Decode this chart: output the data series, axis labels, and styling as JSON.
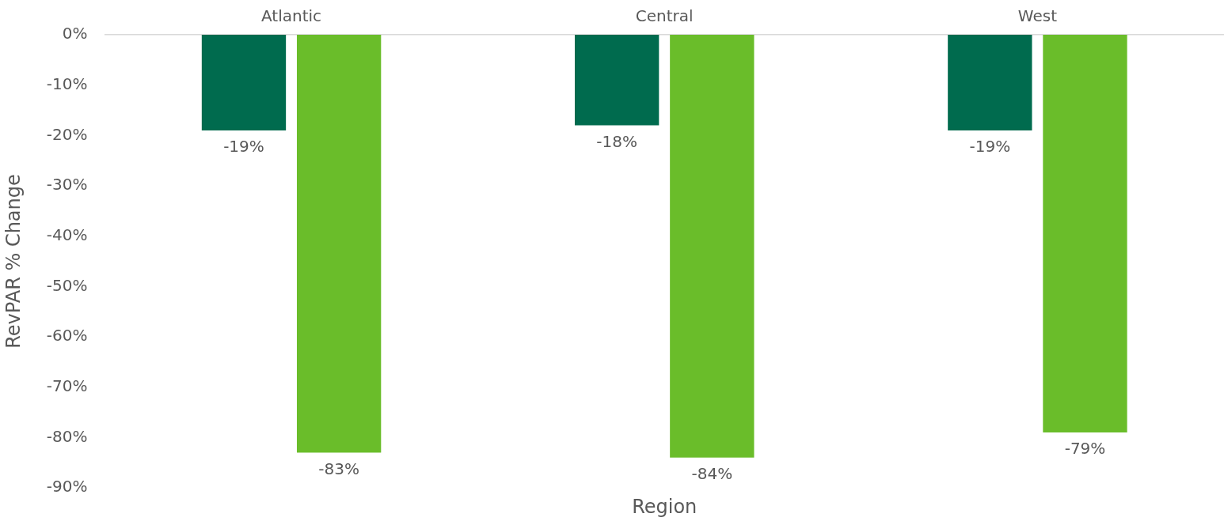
{
  "chart_data": {
    "type": "bar",
    "xlabel": "Region",
    "ylabel": "RevPAR % Change",
    "categories": [
      "Atlantic",
      "Central",
      "West"
    ],
    "series": [
      {
        "color": "#006b4e",
        "values": [
          -19,
          -18,
          -19
        ],
        "value_labels": [
          "-19%",
          "-18%",
          "-19%"
        ]
      },
      {
        "color": "#6abd2a",
        "values": [
          -83,
          -84,
          -79
        ],
        "value_labels": [
          "-83%",
          "-84%",
          "-79%"
        ]
      }
    ],
    "ylim": [
      -90,
      0
    ],
    "yticks": [
      {
        "value": 0,
        "label": "0%"
      },
      {
        "value": -10,
        "label": "-10%"
      },
      {
        "value": -20,
        "label": "-20%"
      },
      {
        "value": -30,
        "label": "-30%"
      },
      {
        "value": -40,
        "label": "-40%"
      },
      {
        "value": -50,
        "label": "-50%"
      },
      {
        "value": -60,
        "label": "-60%"
      },
      {
        "value": -70,
        "label": "-70%"
      },
      {
        "value": -80,
        "label": "-80%"
      },
      {
        "value": -90,
        "label": "-90%"
      }
    ]
  }
}
